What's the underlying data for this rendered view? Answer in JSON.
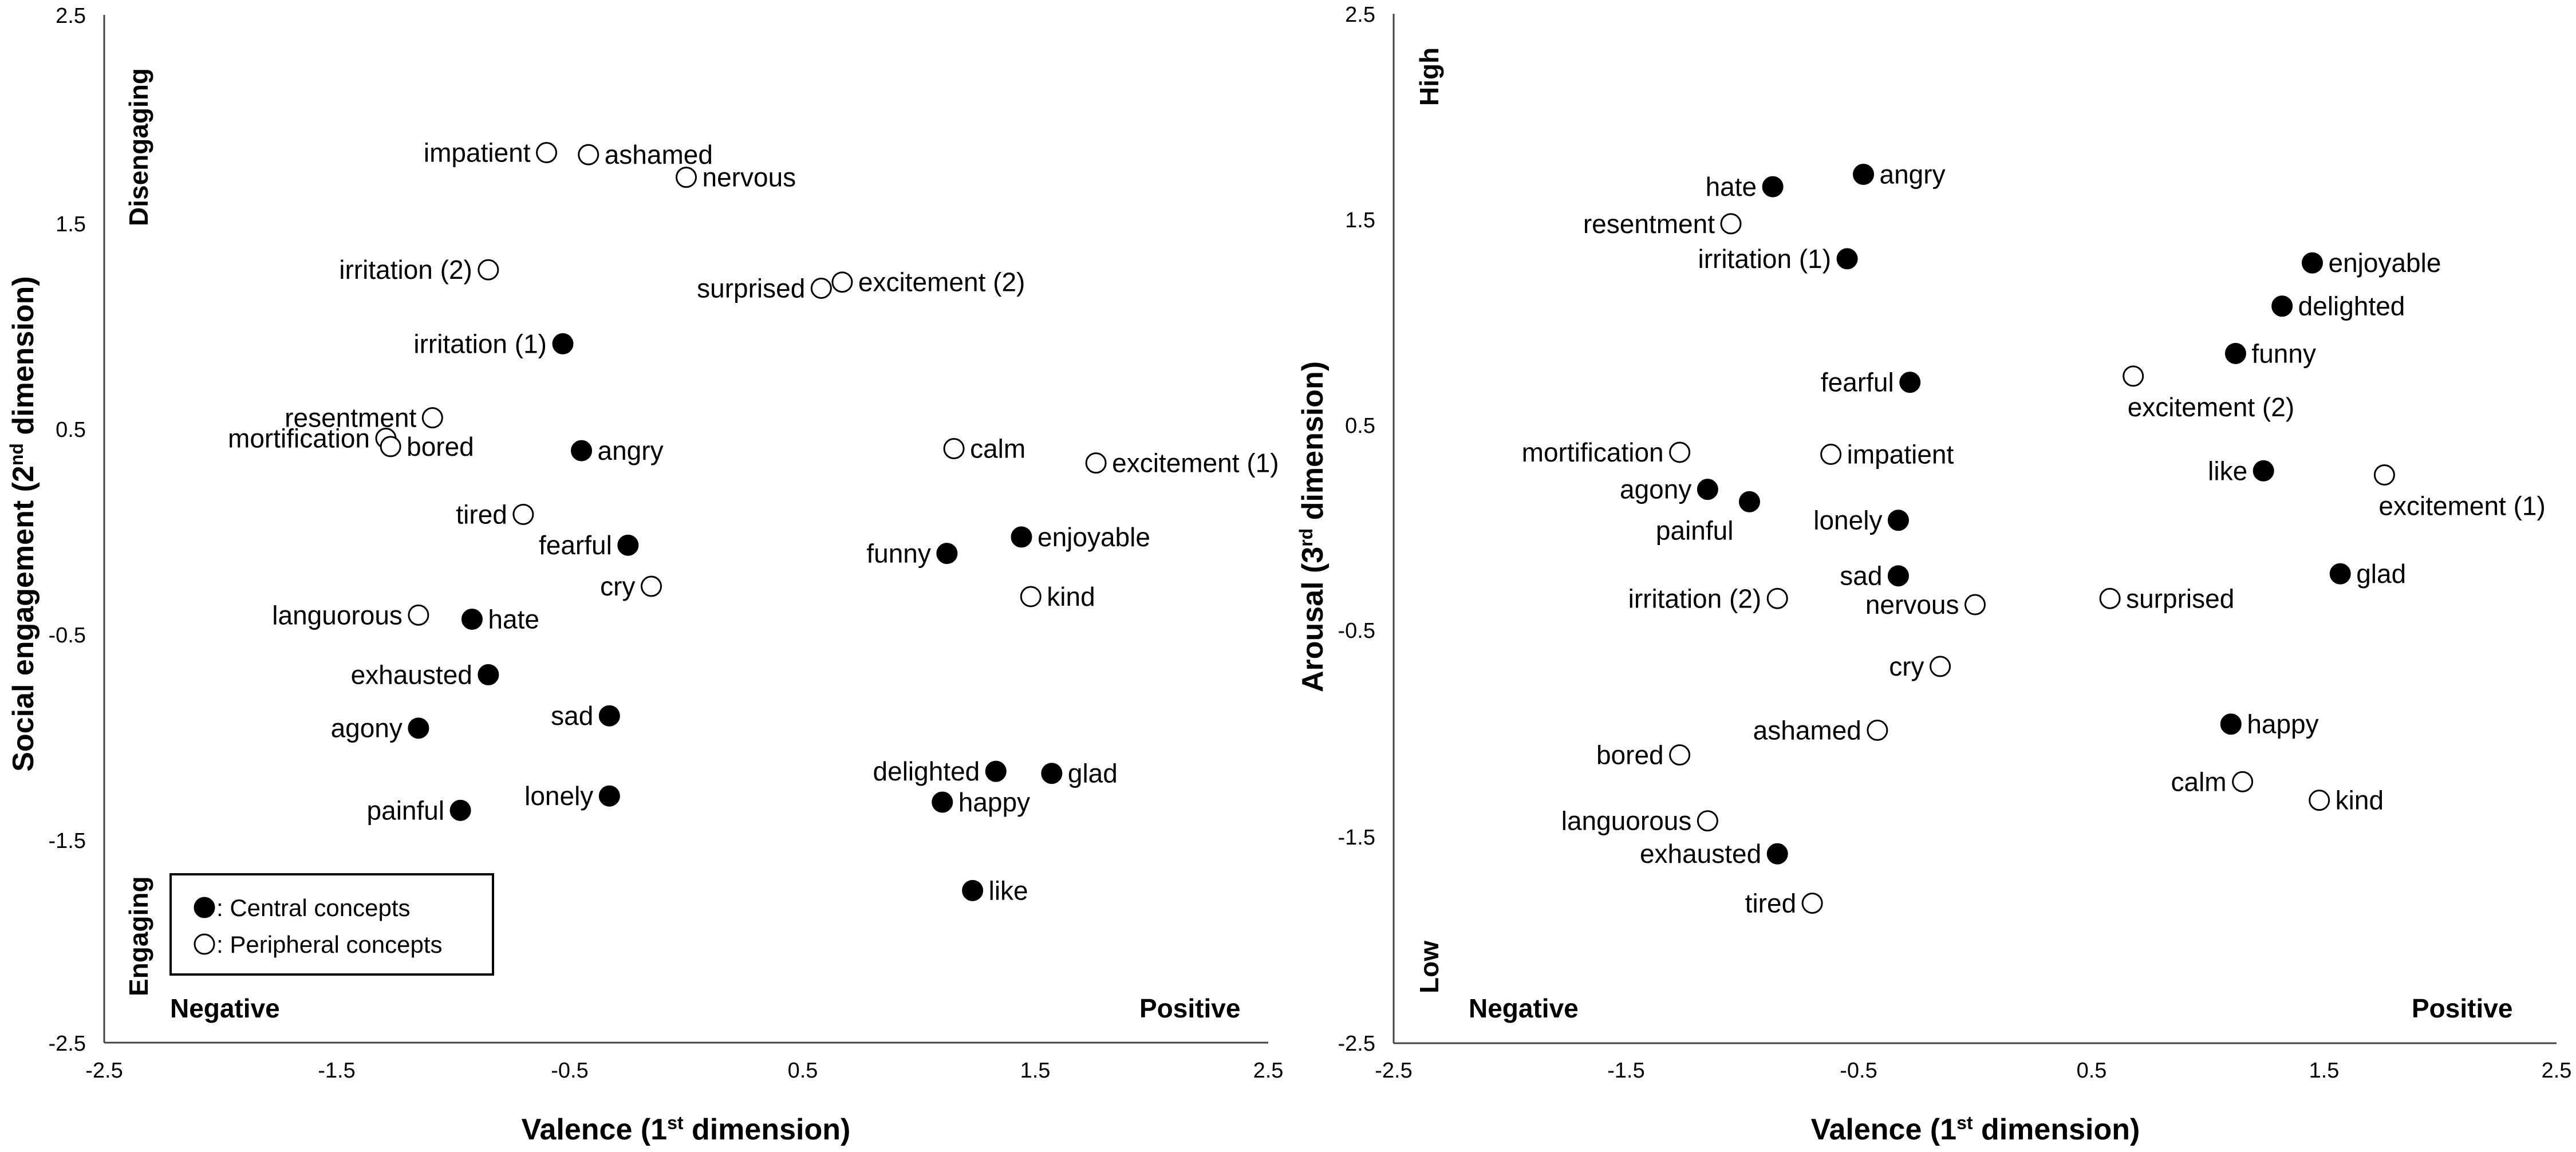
{
  "chart_data": [
    {
      "type": "scatter",
      "title": "",
      "xlabel": "Valence (1st dimension)",
      "ylabel": "Social engagement (2nd dimension)",
      "xlim": [
        -2.5,
        2.5
      ],
      "ylim": [
        -2.5,
        2.5
      ],
      "xticks": [
        "-2.5",
        "-1.5",
        "-0.5",
        "0.5",
        "1.5",
        "2.5"
      ],
      "yticks": [
        "2.5",
        "1.5",
        "0.5",
        "-0.5",
        "-1.5",
        "-2.5"
      ],
      "corner_labels": {
        "top_left": "Disengaging",
        "bottom_left": "Engaging",
        "negative": "Negative",
        "positive": "Positive"
      },
      "legend": {
        "central": ": Central concepts",
        "peripheral": ": Peripheral concepts"
      },
      "points": [
        {
          "label": "impatient",
          "x": -0.6,
          "y": 1.83,
          "type": "peripheral",
          "side": "left"
        },
        {
          "label": "ashamed",
          "x": -0.42,
          "y": 1.82,
          "type": "peripheral",
          "side": "right"
        },
        {
          "label": "nervous",
          "x": 0.0,
          "y": 1.71,
          "type": "peripheral",
          "side": "right"
        },
        {
          "label": "irritation (2)",
          "x": -0.85,
          "y": 1.26,
          "type": "peripheral",
          "side": "left"
        },
        {
          "label": "surprised",
          "x": 0.58,
          "y": 1.17,
          "type": "peripheral",
          "side": "left"
        },
        {
          "label": "excitement (2)",
          "x": 0.67,
          "y": 1.2,
          "type": "peripheral",
          "side": "right"
        },
        {
          "label": "irritation (1)",
          "x": -0.53,
          "y": 0.9,
          "type": "central",
          "side": "left"
        },
        {
          "label": "resentment",
          "x": -1.09,
          "y": 0.54,
          "type": "peripheral",
          "side": "left"
        },
        {
          "label": "mortification",
          "x": -1.29,
          "y": 0.44,
          "type": "peripheral",
          "side": "left"
        },
        {
          "label": "bored",
          "x": -1.27,
          "y": 0.4,
          "type": "peripheral",
          "side": "right"
        },
        {
          "label": "angry",
          "x": -0.45,
          "y": 0.38,
          "type": "central",
          "side": "right"
        },
        {
          "label": "calm",
          "x": 1.15,
          "y": 0.39,
          "type": "peripheral",
          "side": "right"
        },
        {
          "label": "excitement (1)",
          "x": 1.76,
          "y": 0.32,
          "type": "peripheral",
          "side": "right"
        },
        {
          "label": "tired",
          "x": -0.7,
          "y": 0.07,
          "type": "peripheral",
          "side": "left"
        },
        {
          "label": "fearful",
          "x": -0.25,
          "y": -0.08,
          "type": "central",
          "side": "left"
        },
        {
          "label": "funny",
          "x": 1.12,
          "y": -0.12,
          "type": "central",
          "side": "left"
        },
        {
          "label": "enjoyable",
          "x": 1.44,
          "y": -0.04,
          "type": "central",
          "side": "right"
        },
        {
          "label": "cry",
          "x": -0.15,
          "y": -0.28,
          "type": "peripheral",
          "side": "left"
        },
        {
          "label": "kind",
          "x": 1.48,
          "y": -0.33,
          "type": "peripheral",
          "side": "right"
        },
        {
          "label": "languorous",
          "x": -1.15,
          "y": -0.42,
          "type": "peripheral",
          "side": "left"
        },
        {
          "label": "hate",
          "x": -0.92,
          "y": -0.44,
          "type": "central",
          "side": "right"
        },
        {
          "label": "exhausted",
          "x": -0.85,
          "y": -0.71,
          "type": "central",
          "side": "left"
        },
        {
          "label": "sad",
          "x": -0.33,
          "y": -0.91,
          "type": "central",
          "side": "left"
        },
        {
          "label": "agony",
          "x": -1.15,
          "y": -0.97,
          "type": "central",
          "side": "left"
        },
        {
          "label": "delighted",
          "x": 1.33,
          "y": -1.18,
          "type": "central",
          "side": "left"
        },
        {
          "label": "glad",
          "x": 1.57,
          "y": -1.19,
          "type": "central",
          "side": "right"
        },
        {
          "label": "lonely",
          "x": -0.33,
          "y": -1.3,
          "type": "central",
          "side": "left"
        },
        {
          "label": "happy",
          "x": 1.1,
          "y": -1.33,
          "type": "central",
          "side": "right"
        },
        {
          "label": "painful",
          "x": -0.97,
          "y": -1.37,
          "type": "central",
          "side": "left"
        },
        {
          "label": "like",
          "x": 1.23,
          "y": -1.76,
          "type": "central",
          "side": "right"
        }
      ]
    },
    {
      "type": "scatter",
      "title": "",
      "xlabel": "Valence (1st dimension)",
      "ylabel": "Arousal (3rd dimension)",
      "xlim": [
        -2.5,
        2.5
      ],
      "ylim": [
        -2.5,
        2.5
      ],
      "xticks": [
        "-2.5",
        "-1.5",
        "-0.5",
        "0.5",
        "1.5",
        "2.5"
      ],
      "yticks": [
        "2.5",
        "1.5",
        "0.5",
        "-0.5",
        "-1.5",
        "-2.5"
      ],
      "corner_labels": {
        "top_left": "High",
        "bottom_left": "Low",
        "negative": "Negative",
        "positive": "Positive"
      },
      "points": [
        {
          "label": "hate",
          "x": -0.87,
          "y": 1.66,
          "type": "central",
          "side": "left"
        },
        {
          "label": "angry",
          "x": -0.48,
          "y": 1.72,
          "type": "central",
          "side": "right"
        },
        {
          "label": "resentment",
          "x": -1.05,
          "y": 1.48,
          "type": "peripheral",
          "side": "left"
        },
        {
          "label": "irritation (1)",
          "x": -0.55,
          "y": 1.31,
          "type": "central",
          "side": "left"
        },
        {
          "label": "enjoyable",
          "x": 1.45,
          "y": 1.29,
          "type": "central",
          "side": "right"
        },
        {
          "label": "delighted",
          "x": 1.32,
          "y": 1.08,
          "type": "central",
          "side": "right"
        },
        {
          "label": "funny",
          "x": 1.12,
          "y": 0.85,
          "type": "central",
          "side": "right"
        },
        {
          "label": "excitement (2)",
          "x": 0.68,
          "y": 0.74,
          "type": "peripheral",
          "side": "below"
        },
        {
          "label": "fearful",
          "x": -0.28,
          "y": 0.71,
          "type": "central",
          "side": "left"
        },
        {
          "label": "mortification",
          "x": -1.27,
          "y": 0.37,
          "type": "peripheral",
          "side": "left"
        },
        {
          "label": "impatient",
          "x": -0.62,
          "y": 0.36,
          "type": "peripheral",
          "side": "right"
        },
        {
          "label": "like",
          "x": 1.24,
          "y": 0.28,
          "type": "central",
          "side": "left"
        },
        {
          "label": "excitement (1)",
          "x": 1.76,
          "y": 0.26,
          "type": "peripheral",
          "side": "below"
        },
        {
          "label": "agony",
          "x": -1.15,
          "y": 0.19,
          "type": "central",
          "side": "left"
        },
        {
          "label": "painful",
          "x": -0.97,
          "y": 0.13,
          "type": "central",
          "side": "below-left"
        },
        {
          "label": "lonely",
          "x": -0.33,
          "y": 0.04,
          "type": "central",
          "side": "left"
        },
        {
          "label": "sad",
          "x": -0.33,
          "y": -0.23,
          "type": "central",
          "side": "left"
        },
        {
          "label": "glad",
          "x": 1.57,
          "y": -0.22,
          "type": "central",
          "side": "right"
        },
        {
          "label": "irritation (2)",
          "x": -0.85,
          "y": -0.34,
          "type": "peripheral",
          "side": "left"
        },
        {
          "label": "surprised",
          "x": 0.58,
          "y": -0.34,
          "type": "peripheral",
          "side": "right"
        },
        {
          "label": "nervous",
          "x": 0.0,
          "y": -0.37,
          "type": "peripheral",
          "side": "left"
        },
        {
          "label": "cry",
          "x": -0.15,
          "y": -0.67,
          "type": "peripheral",
          "side": "left"
        },
        {
          "label": "ashamed",
          "x": -0.42,
          "y": -0.98,
          "type": "peripheral",
          "side": "left"
        },
        {
          "label": "happy",
          "x": 1.1,
          "y": -0.95,
          "type": "central",
          "side": "right"
        },
        {
          "label": "bored",
          "x": -1.27,
          "y": -1.1,
          "type": "peripheral",
          "side": "left"
        },
        {
          "label": "calm",
          "x": 1.15,
          "y": -1.23,
          "type": "peripheral",
          "side": "left"
        },
        {
          "label": "kind",
          "x": 1.48,
          "y": -1.32,
          "type": "peripheral",
          "side": "right"
        },
        {
          "label": "languorous",
          "x": -1.15,
          "y": -1.42,
          "type": "peripheral",
          "side": "left"
        },
        {
          "label": "exhausted",
          "x": -0.85,
          "y": -1.58,
          "type": "central",
          "side": "left"
        },
        {
          "label": "tired",
          "x": -0.7,
          "y": -1.82,
          "type": "peripheral",
          "side": "left"
        }
      ]
    }
  ]
}
